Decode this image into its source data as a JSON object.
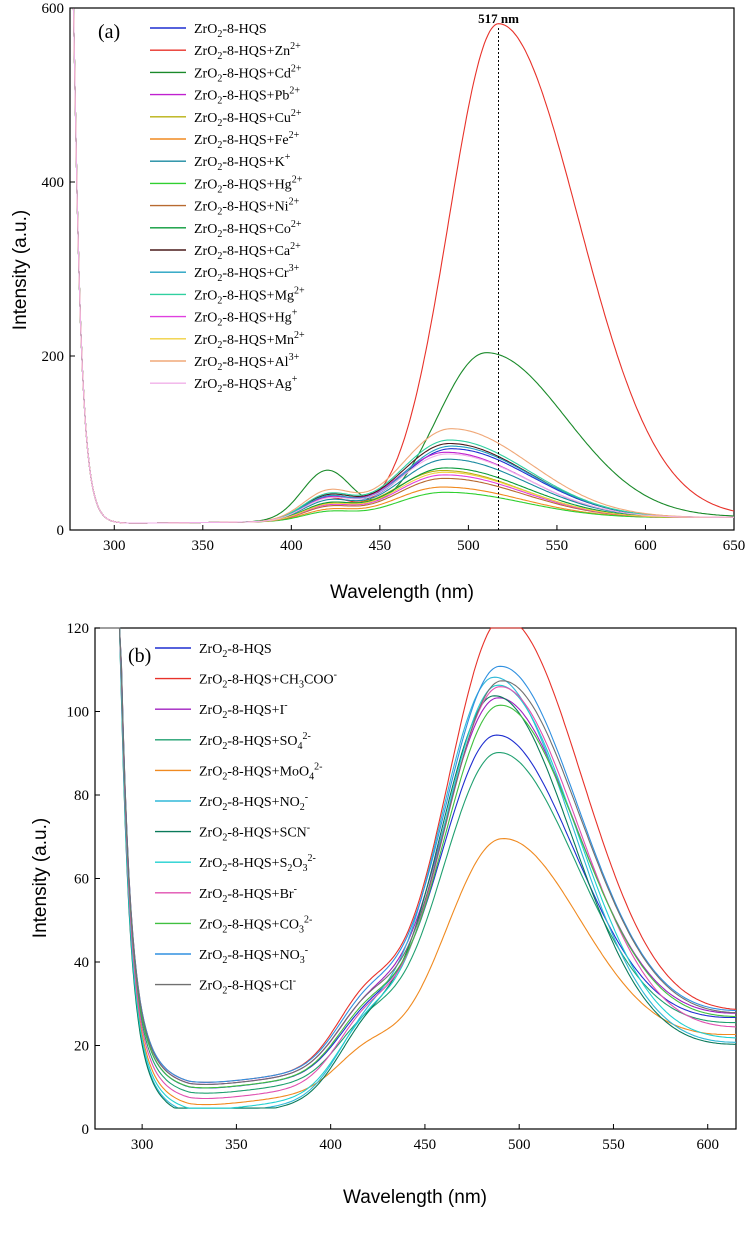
{
  "chart_data": [
    {
      "type": "line",
      "panel_label": "(a)",
      "xlabel": "Wavelength (nm)",
      "ylabel": "Intensity (a.u.)",
      "xlim": [
        275,
        650
      ],
      "ylim": [
        0,
        600
      ],
      "x_ticks": [
        300,
        350,
        400,
        450,
        500,
        550,
        600,
        650
      ],
      "y_ticks": [
        0,
        200,
        400,
        600
      ],
      "grid": false,
      "legend_position": "top-left",
      "annotation": {
        "text": "517 nm",
        "x": 517
      },
      "series": [
        {
          "name": "ZrO2-8-HQS",
          "base": "ZrO",
          "sub": "2",
          "rest": "-8-HQS",
          "ion": "",
          "sup": "",
          "color": "#1f2fd0",
          "peak": 82,
          "center": 490
        },
        {
          "name": "ZrO2-8-HQS+Zn2+",
          "base": "ZrO",
          "sub": "2",
          "rest": "-8-HQS+",
          "ion": "Zn",
          "sup": "2+",
          "color": "#e8322a",
          "peak": 570,
          "center": 517
        },
        {
          "name": "ZrO2-8-HQS+Cd2+",
          "base": "ZrO",
          "sub": "2",
          "rest": "-8-HQS+",
          "ion": "Cd",
          "sup": "2+",
          "color": "#1a8a2a",
          "peak": 192,
          "center": 510
        },
        {
          "name": "ZrO2-8-HQS+Pb2+",
          "base": "ZrO",
          "sub": "2",
          "rest": "-8-HQS+",
          "ion": "Pb",
          "sup": "2+",
          "color": "#c020d0",
          "peak": 78,
          "center": 487
        },
        {
          "name": "ZrO2-8-HQS+Cu2+",
          "base": "ZrO",
          "sub": "2",
          "rest": "-8-HQS+",
          "ion": "Cu",
          "sup": "2+",
          "color": "#b8b010",
          "peak": 57,
          "center": 485
        },
        {
          "name": "ZrO2-8-HQS+Fe2+",
          "base": "ZrO",
          "sub": "2",
          "rest": "-8-HQS+",
          "ion": "Fe",
          "sup": "2+",
          "color": "#f08a20",
          "peak": 38,
          "center": 485
        },
        {
          "name": "ZrO2-8-HQS+K+",
          "base": "ZrO",
          "sub": "2",
          "rest": "-8-HQS+",
          "ion": "K",
          "sup": "+",
          "color": "#1a8aa0",
          "peak": 70,
          "center": 488
        },
        {
          "name": "ZrO2-8-HQS+Hg2+",
          "base": "ZrO",
          "sub": "2",
          "rest": "-8-HQS+",
          "ion": "Hg",
          "sup": "2+",
          "color": "#30d030",
          "peak": 32,
          "center": 486
        },
        {
          "name": "ZrO2-8-HQS+Ni2+",
          "base": "ZrO",
          "sub": "2",
          "rest": "-8-HQS+",
          "ion": "Ni",
          "sup": "2+",
          "color": "#b86a30",
          "peak": 48,
          "center": 486
        },
        {
          "name": "ZrO2-8-HQS+Co2+",
          "base": "ZrO",
          "sub": "2",
          "rest": "-8-HQS+",
          "ion": "Co",
          "sup": "2+",
          "color": "#0a9a3a",
          "peak": 60,
          "center": 487
        },
        {
          "name": "ZrO2-8-HQS+Ca2+",
          "base": "ZrO",
          "sub": "2",
          "rest": "-8-HQS+",
          "ion": "Ca",
          "sup": "2+",
          "color": "#4a1a1a",
          "peak": 88,
          "center": 489
        },
        {
          "name": "ZrO2-8-HQS+Cr3+",
          "base": "ZrO",
          "sub": "2",
          "rest": "-8-HQS+",
          "ion": "Cr",
          "sup": "3+",
          "color": "#20a0c0",
          "peak": 85,
          "center": 490
        },
        {
          "name": "ZrO2-8-HQS+Mg2+",
          "base": "ZrO",
          "sub": "2",
          "rest": "-8-HQS+",
          "ion": "Mg",
          "sup": "2+",
          "color": "#30d0a0",
          "peak": 92,
          "center": 489
        },
        {
          "name": "ZrO2-8-HQS+Hg+",
          "base": "ZrO",
          "sub": "2",
          "rest": "-8-HQS+",
          "ion": "Hg",
          "sup": "+",
          "color": "#e040e0",
          "peak": 52,
          "center": 486
        },
        {
          "name": "ZrO2-8-HQS+Mn2+",
          "base": "ZrO",
          "sub": "2",
          "rest": "-8-HQS+",
          "ion": "Mn",
          "sup": "2+",
          "color": "#f0d040",
          "peak": 55,
          "center": 486
        },
        {
          "name": "ZrO2-8-HQS+Al3+",
          "base": "ZrO",
          "sub": "2",
          "rest": "-8-HQS+",
          "ion": "Al",
          "sup": "3+",
          "color": "#f0a878",
          "peak": 105,
          "center": 490
        },
        {
          "name": "ZrO2-8-HQS+Ag+",
          "base": "ZrO",
          "sub": "2",
          "rest": "-8-HQS+",
          "ion": "Ag",
          "sup": "+",
          "color": "#f0b0e8",
          "peak": 76,
          "center": 488
        }
      ]
    },
    {
      "type": "line",
      "panel_label": "(b)",
      "xlabel": "Wavelength (nm)",
      "ylabel": "Intensity (a.u.)",
      "xlim": [
        275,
        615
      ],
      "ylim": [
        0,
        120
      ],
      "x_ticks": [
        300,
        350,
        400,
        450,
        500,
        550,
        600
      ],
      "y_ticks": [
        0,
        20,
        40,
        60,
        80,
        100,
        120
      ],
      "grid": false,
      "legend_position": "top-left",
      "series": [
        {
          "name": "ZrO2-8-HQS",
          "base": "ZrO",
          "sub": "2",
          "rest": "-8-HQS",
          "ion": "",
          "isub": "",
          "sup": "",
          "color": "#1f2fd0",
          "peak": 76,
          "center": 487
        },
        {
          "name": "ZrO2-8-HQS+CH3COO-",
          "base": "ZrO",
          "sub": "2",
          "rest": "-8-HQS+",
          "ion": "CH",
          "isub": "3",
          "ion2": "COO",
          "sup": "-",
          "color": "#e8322a",
          "peak": 102.5,
          "center": 491
        },
        {
          "name": "ZrO2-8-HQS+I-",
          "base": "ZrO",
          "sub": "2",
          "rest": "-8-HQS+",
          "ion": "I",
          "isub": "",
          "sup": "-",
          "color": "#a020c0",
          "peak": 84,
          "center": 488
        },
        {
          "name": "ZrO2-8-HQS+SO42-",
          "base": "ZrO",
          "sub": "2",
          "rest": "-8-HQS+",
          "ion": "SO",
          "isub": "4",
          "sup": "2-",
          "color": "#20a070",
          "peak": 73,
          "center": 488
        },
        {
          "name": "ZrO2-8-HQS+MoO42-",
          "base": "ZrO",
          "sub": "2",
          "rest": "-8-HQS+",
          "ion": "MoO",
          "isub": "4",
          "sup": "2-",
          "color": "#f08a20",
          "peak": 55,
          "center": 490
        },
        {
          "name": "ZrO2-8-HQS+NO2-",
          "base": "ZrO",
          "sub": "2",
          "rest": "-8-HQS+",
          "ion": "NO",
          "isub": "2",
          "sup": "-",
          "color": "#30b8d8",
          "peak": 96,
          "center": 486
        },
        {
          "name": "ZrO2-8-HQS+SCN-",
          "base": "ZrO",
          "sub": "2",
          "rest": "-8-HQS+",
          "ion": "SCN",
          "isub": "",
          "sup": "-",
          "color": "#0a7a5a",
          "peak": 92,
          "center": 486
        },
        {
          "name": "ZrO2-8-HQS+S2O32-",
          "base": "ZrO",
          "sub": "2",
          "rest": "-8-HQS+",
          "ion": "S",
          "isub": "2",
          "ion2": "O",
          "isub2": "3",
          "sup": "2-",
          "color": "#20d0d0",
          "peak": 93,
          "center": 488
        },
        {
          "name": "ZrO2-8-HQS+Br-",
          "base": "ZrO",
          "sub": "2",
          "rest": "-8-HQS+",
          "ion": "Br",
          "isub": "",
          "sup": "-",
          "color": "#e050b0",
          "peak": 90,
          "center": 489
        },
        {
          "name": "ZrO2-8-HQS+CO32-",
          "base": "ZrO",
          "sub": "2",
          "rest": "-8-HQS+",
          "ion": "CO",
          "isub": "3",
          "sup": "2-",
          "color": "#40c040",
          "peak": 83,
          "center": 489
        },
        {
          "name": "ZrO2-8-HQS+NO3-",
          "base": "ZrO",
          "sub": "2",
          "rest": "-8-HQS+",
          "ion": "NO",
          "isub": "3",
          "sup": "-",
          "color": "#3090e0",
          "peak": 91,
          "center": 489
        },
        {
          "name": "ZrO2-8-HQS+Cl-",
          "base": "ZrO",
          "sub": "2",
          "rest": "-8-HQS+",
          "ion": "Cl",
          "isub": "",
          "sup": "-",
          "color": "#707070",
          "peak": 88,
          "center": 490
        }
      ]
    }
  ]
}
